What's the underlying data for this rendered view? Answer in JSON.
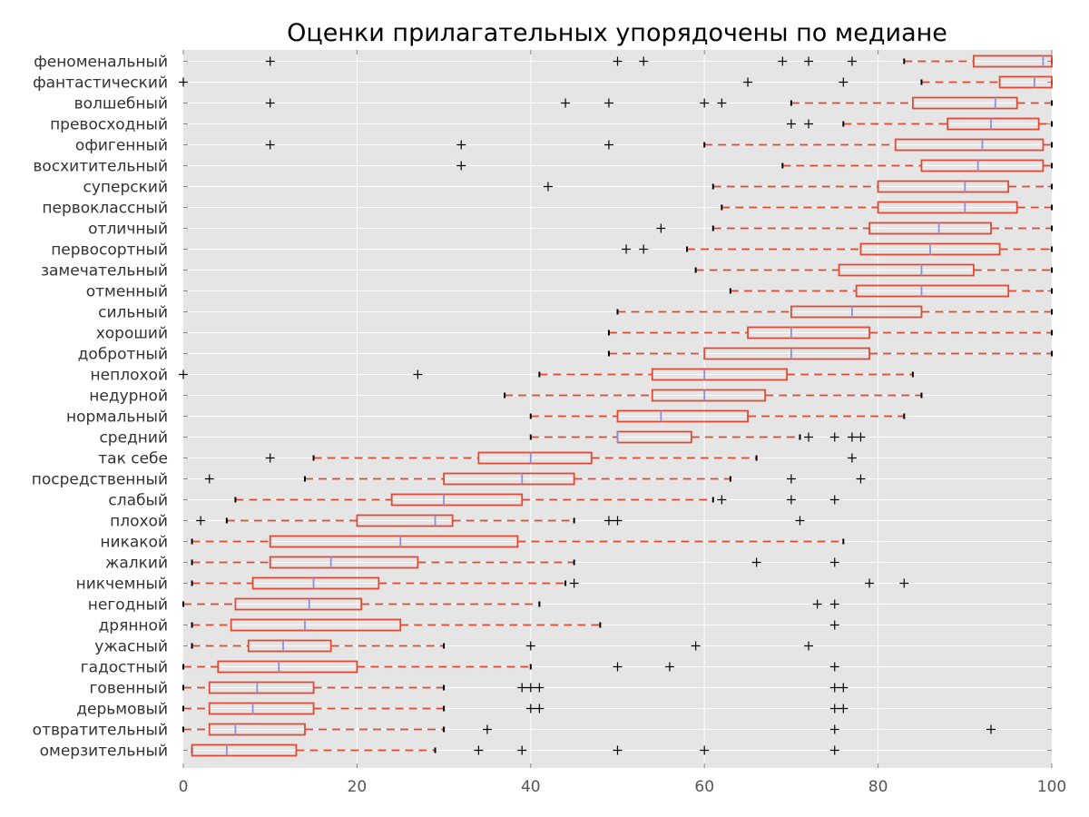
{
  "chart_data": {
    "type": "boxplot",
    "title": "Оценки прилагательных упорядочены по медиане",
    "xlabel": "",
    "ylabel": "",
    "xlim": [
      0,
      100
    ],
    "xticks": [
      0,
      20,
      40,
      60,
      80,
      100
    ],
    "grid": true,
    "colors": {
      "background": "#e5e5e5",
      "grid": "#ffffff",
      "box": "#e24a33",
      "median": "#8f8fe0",
      "whisker": "#e24a33",
      "cap": "#000000",
      "flier": "#000000"
    },
    "categories": [
      {
        "label": "феноменальный",
        "whislo": 83,
        "q1": 91,
        "med": 99,
        "q3": 100,
        "whishi": 100,
        "fliers": [
          10,
          50,
          53,
          69,
          72,
          77
        ]
      },
      {
        "label": "фантастический",
        "whislo": 85,
        "q1": 94,
        "med": 98,
        "q3": 100,
        "whishi": 100,
        "fliers": [
          0,
          65,
          76
        ]
      },
      {
        "label": "волшебный",
        "whislo": 70,
        "q1": 84,
        "med": 93.5,
        "q3": 96,
        "whishi": 100,
        "fliers": [
          10,
          44,
          49,
          60,
          62
        ]
      },
      {
        "label": "превосходный",
        "whislo": 76,
        "q1": 88,
        "med": 93,
        "q3": 98.5,
        "whishi": 100,
        "fliers": [
          70,
          72
        ]
      },
      {
        "label": "офигенный",
        "whislo": 60,
        "q1": 82,
        "med": 92,
        "q3": 99,
        "whishi": 100,
        "fliers": [
          10,
          32,
          49
        ]
      },
      {
        "label": "восхитительный",
        "whislo": 69,
        "q1": 85,
        "med": 91.5,
        "q3": 99,
        "whishi": 100,
        "fliers": [
          32
        ]
      },
      {
        "label": "суперский",
        "whislo": 61,
        "q1": 80,
        "med": 90,
        "q3": 95,
        "whishi": 100,
        "fliers": [
          42
        ]
      },
      {
        "label": "первоклассный",
        "whislo": 62,
        "q1": 80,
        "med": 90,
        "q3": 96,
        "whishi": 100,
        "fliers": []
      },
      {
        "label": "отличный",
        "whislo": 61,
        "q1": 79,
        "med": 87,
        "q3": 93,
        "whishi": 100,
        "fliers": [
          55
        ]
      },
      {
        "label": "первосортный",
        "whislo": 58,
        "q1": 78,
        "med": 86,
        "q3": 94,
        "whishi": 100,
        "fliers": [
          51,
          53
        ]
      },
      {
        "label": "замечательный",
        "whislo": 59,
        "q1": 75.5,
        "med": 85,
        "q3": 91,
        "whishi": 100,
        "fliers": []
      },
      {
        "label": "отменный",
        "whislo": 63,
        "q1": 77.5,
        "med": 85,
        "q3": 95,
        "whishi": 100,
        "fliers": []
      },
      {
        "label": "сильный",
        "whislo": 50,
        "q1": 70,
        "med": 77,
        "q3": 85,
        "whishi": 100,
        "fliers": []
      },
      {
        "label": "хороший",
        "whislo": 49,
        "q1": 65,
        "med": 70,
        "q3": 79,
        "whishi": 100,
        "fliers": []
      },
      {
        "label": "добротный",
        "whislo": 49,
        "q1": 60,
        "med": 70,
        "q3": 79,
        "whishi": 100,
        "fliers": []
      },
      {
        "label": "неплохой",
        "whislo": 41,
        "q1": 54,
        "med": 60,
        "q3": 69.5,
        "whishi": 84,
        "fliers": [
          0,
          27
        ]
      },
      {
        "label": "недурной",
        "whislo": 37,
        "q1": 54,
        "med": 60,
        "q3": 67,
        "whishi": 85,
        "fliers": []
      },
      {
        "label": "нормальный",
        "whislo": 40,
        "q1": 50,
        "med": 55,
        "q3": 65,
        "whishi": 83,
        "fliers": []
      },
      {
        "label": "средний",
        "whislo": 40,
        "q1": 50,
        "med": 50,
        "q3": 58.5,
        "whishi": 71,
        "fliers": [
          72,
          75,
          77,
          78
        ]
      },
      {
        "label": "так себе",
        "whislo": 15,
        "q1": 34,
        "med": 40,
        "q3": 47,
        "whishi": 66,
        "fliers": [
          10,
          77
        ]
      },
      {
        "label": "посредственный",
        "whislo": 14,
        "q1": 30,
        "med": 39,
        "q3": 45,
        "whishi": 63,
        "fliers": [
          3,
          70,
          78
        ]
      },
      {
        "label": "слабый",
        "whislo": 6,
        "q1": 24,
        "med": 30,
        "q3": 39,
        "whishi": 61,
        "fliers": [
          62,
          70,
          75
        ]
      },
      {
        "label": "плохой",
        "whislo": 5,
        "q1": 20,
        "med": 29,
        "q3": 31,
        "whishi": 45,
        "fliers": [
          2,
          49,
          50,
          71
        ]
      },
      {
        "label": "никакой",
        "whislo": 1,
        "q1": 10,
        "med": 25,
        "q3": 38.5,
        "whishi": 76,
        "fliers": []
      },
      {
        "label": "жалкий",
        "whislo": 1,
        "q1": 10,
        "med": 17,
        "q3": 27,
        "whishi": 45,
        "fliers": [
          66,
          75
        ]
      },
      {
        "label": "никчемный",
        "whislo": 1,
        "q1": 8,
        "med": 15,
        "q3": 22.5,
        "whishi": 44,
        "fliers": [
          45,
          79,
          83
        ]
      },
      {
        "label": "негодный",
        "whislo": 0,
        "q1": 6,
        "med": 14.5,
        "q3": 20.5,
        "whishi": 41,
        "fliers": [
          73,
          75
        ]
      },
      {
        "label": "дрянной",
        "whislo": 1,
        "q1": 5.5,
        "med": 14,
        "q3": 25,
        "whishi": 48,
        "fliers": [
          75
        ]
      },
      {
        "label": "ужасный",
        "whislo": 1,
        "q1": 7.5,
        "med": 11.5,
        "q3": 17,
        "whishi": 30,
        "fliers": [
          40,
          59,
          72
        ]
      },
      {
        "label": "гадостный",
        "whislo": 0,
        "q1": 4,
        "med": 11,
        "q3": 20,
        "whishi": 40,
        "fliers": [
          50,
          56,
          75
        ]
      },
      {
        "label": "говенный",
        "whislo": 0,
        "q1": 3,
        "med": 8.5,
        "q3": 15,
        "whishi": 30,
        "fliers": [
          39,
          40,
          41,
          75,
          76
        ]
      },
      {
        "label": "дерьмовый",
        "whislo": 0,
        "q1": 3,
        "med": 8,
        "q3": 15,
        "whishi": 30,
        "fliers": [
          40,
          41,
          75,
          76
        ]
      },
      {
        "label": "отвратительный",
        "whislo": 0,
        "q1": 3,
        "med": 6,
        "q3": 14,
        "whishi": 30,
        "fliers": [
          35,
          75,
          93
        ]
      },
      {
        "label": "омерзительный",
        "whislo": 1,
        "q1": 1,
        "med": 5,
        "q3": 13,
        "whishi": 29,
        "fliers": [
          34,
          39,
          50,
          60,
          75
        ]
      }
    ]
  }
}
